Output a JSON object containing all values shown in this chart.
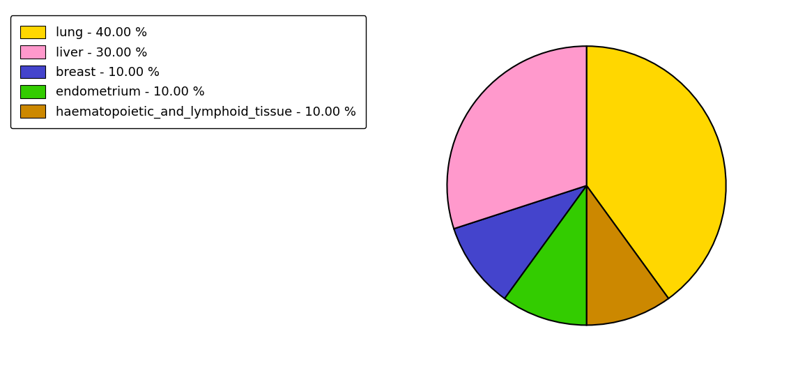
{
  "labels": [
    "lung",
    "haematopoietic_and_lymphoid_tissue",
    "endometrium",
    "breast",
    "liver"
  ],
  "values": [
    40,
    10,
    10,
    10,
    30
  ],
  "colors": [
    "#FFD700",
    "#CC8800",
    "#33CC00",
    "#4444CC",
    "#FF99CC"
  ],
  "legend_labels": [
    "lung - 40.00 %",
    "liver - 30.00 %",
    "breast - 10.00 %",
    "endometrium - 10.00 %",
    "haematopoietic_and_lymphoid_tissue - 10.00 %"
  ],
  "legend_colors": [
    "#FFD700",
    "#FF99CC",
    "#4444CC",
    "#33CC00",
    "#CC8800"
  ],
  "background_color": "#ffffff",
  "startangle": 90,
  "figsize": [
    11.45,
    5.38
  ],
  "dpi": 100
}
